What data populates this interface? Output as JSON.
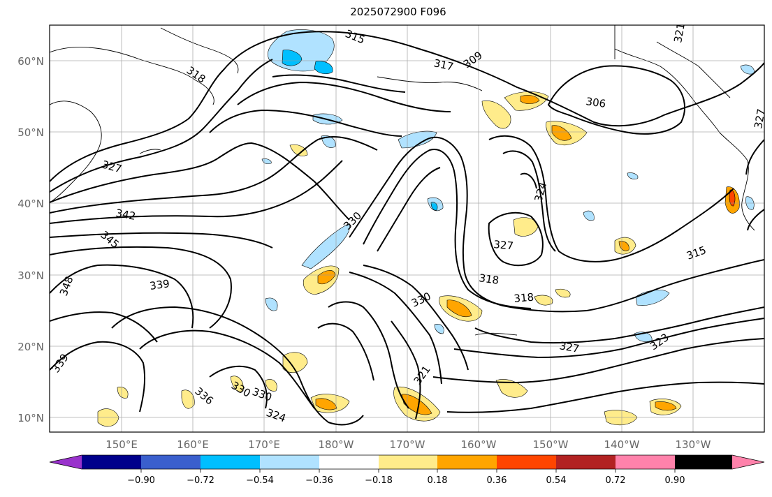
{
  "title": "2025072900 F096",
  "lat_labels": [
    "60°N",
    "50°N",
    "40°N",
    "30°N",
    "20°N",
    "10°N"
  ],
  "lon_labels": [
    "150°E",
    "160°E",
    "170°E",
    "180°W",
    "170°W",
    "160°W",
    "150°W",
    "140°W",
    "130°W"
  ],
  "contour_labels": [
    "315",
    "317",
    "309",
    "318",
    "306",
    "321",
    "324",
    "327",
    "327",
    "342",
    "345",
    "348",
    "339",
    "330",
    "330",
    "327",
    "318",
    "318",
    "315",
    "330",
    "327",
    "323",
    "339",
    "336",
    "330",
    "324",
    "321"
  ],
  "colorbar": {
    "colors": [
      "#9932cc",
      "#00008b",
      "#3a5fcd",
      "#00bfff",
      "#b0e2ff",
      "#ffffff",
      "#ffec8b",
      "#ffa500",
      "#ff4500",
      "#b22222",
      "#ff82ab"
    ],
    "tick_labels": [
      "−0.90",
      "−0.72",
      "−0.54",
      "−0.36",
      "−0.18",
      "0.18",
      "0.36",
      "0.54",
      "0.72",
      "0.90"
    ]
  }
}
